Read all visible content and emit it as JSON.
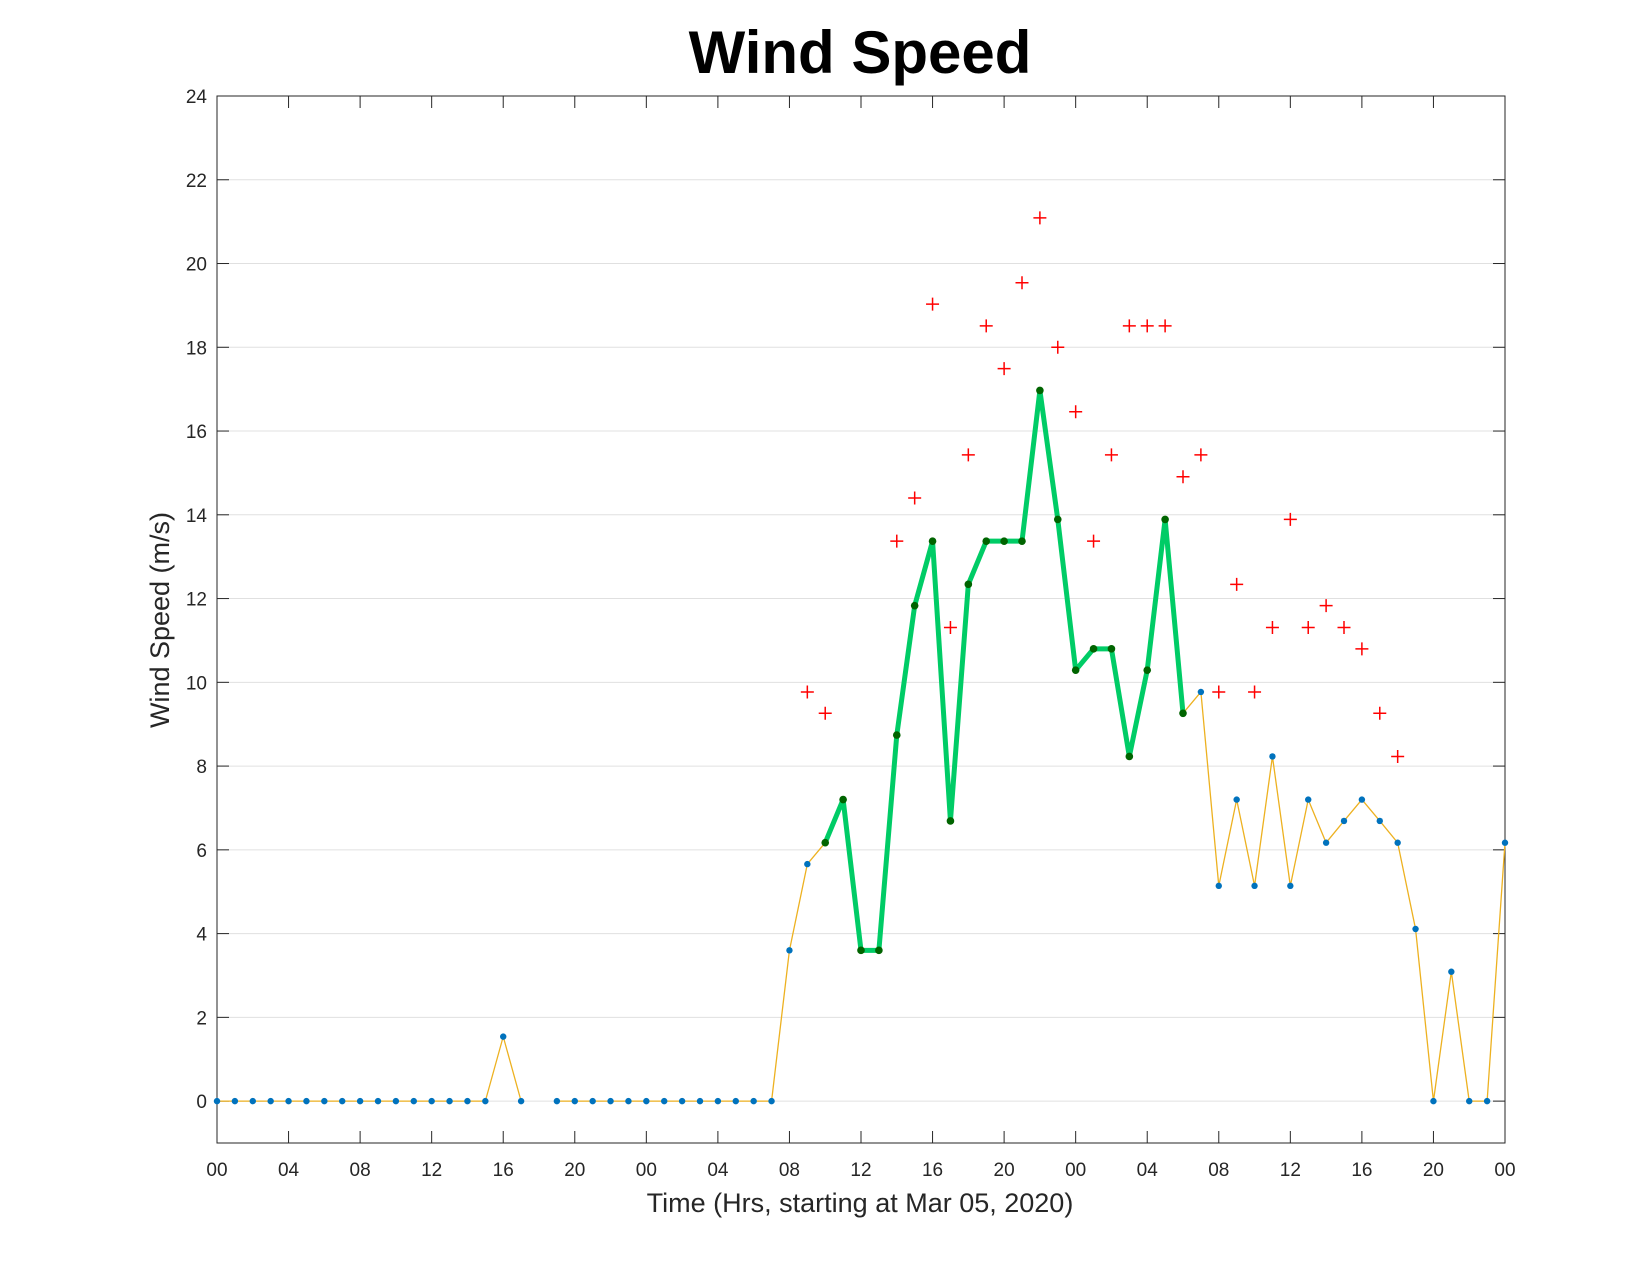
{
  "chart_data": {
    "type": "line",
    "title": "Wind Speed",
    "xlabel": "Time (Hrs, starting at Mar 05, 2020)",
    "ylabel": "Wind Speed (m/s)",
    "xlim": [
      0,
      72
    ],
    "ylim": [
      -1,
      24
    ],
    "x_unit": "hours",
    "x_ticks": [
      0,
      4,
      8,
      12,
      16,
      20,
      24,
      28,
      32,
      36,
      40,
      44,
      48,
      52,
      56,
      60,
      64,
      68,
      72
    ],
    "x_tick_labels": [
      "00",
      "04",
      "08",
      "12",
      "16",
      "20",
      "00",
      "04",
      "08",
      "12",
      "16",
      "20",
      "00",
      "04",
      "08",
      "12",
      "16",
      "20",
      "00"
    ],
    "y_ticks": [
      0,
      2,
      4,
      6,
      8,
      10,
      12,
      14,
      16,
      18,
      20,
      22,
      24
    ],
    "y_tick_labels": [
      "0",
      "2",
      "4",
      "6",
      "8",
      "10",
      "12",
      "14",
      "16",
      "18",
      "20",
      "22",
      "24"
    ],
    "grid": "horizontal",
    "colors": {
      "line": "#EDB120",
      "marker": "#0072BD",
      "highlight": "#00CC66",
      "highlight_marker": "#006400",
      "gust": "#FF0000",
      "grid": "#E0E0E0",
      "axis": "#262626"
    },
    "series": [
      {
        "role": "wind-speed",
        "style": "line-with-dot-markers",
        "points": [
          [
            0,
            0
          ],
          [
            1,
            0
          ],
          [
            2,
            0
          ],
          [
            3,
            0
          ],
          [
            4,
            0
          ],
          [
            5,
            0
          ],
          [
            6,
            0
          ],
          [
            7,
            0
          ],
          [
            8,
            0
          ],
          [
            9,
            0
          ],
          [
            10,
            0
          ],
          [
            11,
            0
          ],
          [
            12,
            0
          ],
          [
            13,
            0
          ],
          [
            14,
            0
          ],
          [
            15,
            0
          ],
          [
            16,
            1.54
          ],
          [
            17,
            0
          ],
          [
            19,
            0
          ],
          [
            20,
            0
          ],
          [
            21,
            0
          ],
          [
            22,
            0
          ],
          [
            23,
            0
          ],
          [
            24,
            0
          ],
          [
            25,
            0
          ],
          [
            26,
            0
          ],
          [
            27,
            0
          ],
          [
            28,
            0
          ],
          [
            29,
            0
          ],
          [
            30,
            0
          ],
          [
            31,
            0
          ],
          [
            32,
            3.6
          ],
          [
            33,
            5.66
          ],
          [
            34,
            6.17
          ],
          [
            35,
            7.2
          ],
          [
            36,
            3.6
          ],
          [
            37,
            3.6
          ],
          [
            38,
            8.74
          ],
          [
            39,
            11.83
          ],
          [
            40,
            13.37
          ],
          [
            41,
            6.69
          ],
          [
            42,
            12.34
          ],
          [
            43,
            13.37
          ],
          [
            44,
            13.37
          ],
          [
            45,
            13.37
          ],
          [
            46,
            16.97
          ],
          [
            47,
            13.89
          ],
          [
            48,
            10.29
          ],
          [
            49,
            10.8
          ],
          [
            50,
            10.8
          ],
          [
            51,
            8.23
          ],
          [
            52,
            10.29
          ],
          [
            53,
            13.89
          ],
          [
            54,
            9.26
          ],
          [
            55,
            9.77
          ],
          [
            56,
            5.14
          ],
          [
            57,
            7.2
          ],
          [
            58,
            5.14
          ],
          [
            59,
            8.23
          ],
          [
            60,
            5.14
          ],
          [
            61,
            7.2
          ],
          [
            62,
            6.17
          ],
          [
            63,
            6.69
          ],
          [
            64,
            7.2
          ],
          [
            65,
            6.69
          ],
          [
            66,
            6.17
          ],
          [
            67,
            4.11
          ],
          [
            68,
            0
          ],
          [
            69,
            3.09
          ],
          [
            70,
            0
          ],
          [
            71,
            0
          ],
          [
            72,
            6.17
          ]
        ]
      },
      {
        "role": "highlight",
        "style": "thick-line",
        "x": [
          34,
          35,
          36,
          37,
          38,
          39,
          40,
          41,
          42,
          43,
          44,
          45,
          46,
          47,
          48,
          49,
          50,
          51,
          52,
          53,
          54
        ],
        "y": [
          6.17,
          7.2,
          3.6,
          3.6,
          8.74,
          11.83,
          13.37,
          6.69,
          12.34,
          13.37,
          13.37,
          13.37,
          16.97,
          13.89,
          10.29,
          10.8,
          10.8,
          8.23,
          10.29,
          13.89,
          9.26
        ]
      },
      {
        "role": "gust",
        "style": "plus-markers",
        "x": [
          33,
          34,
          38,
          39,
          40,
          41,
          42,
          43,
          44,
          45,
          46,
          47,
          48,
          49,
          50,
          51,
          52,
          53,
          54,
          55,
          56,
          57,
          58,
          59,
          60,
          61,
          62,
          63,
          64,
          65,
          66
        ],
        "y": [
          9.77,
          9.26,
          13.37,
          14.4,
          19.03,
          11.31,
          15.43,
          18.51,
          17.49,
          19.54,
          21.09,
          18.0,
          16.46,
          13.37,
          15.43,
          18.51,
          18.51,
          18.51,
          14.91,
          15.43,
          9.77,
          12.34,
          9.77,
          11.31,
          13.89,
          11.31,
          11.83,
          11.31,
          10.8,
          9.26,
          8.23
        ]
      }
    ]
  }
}
